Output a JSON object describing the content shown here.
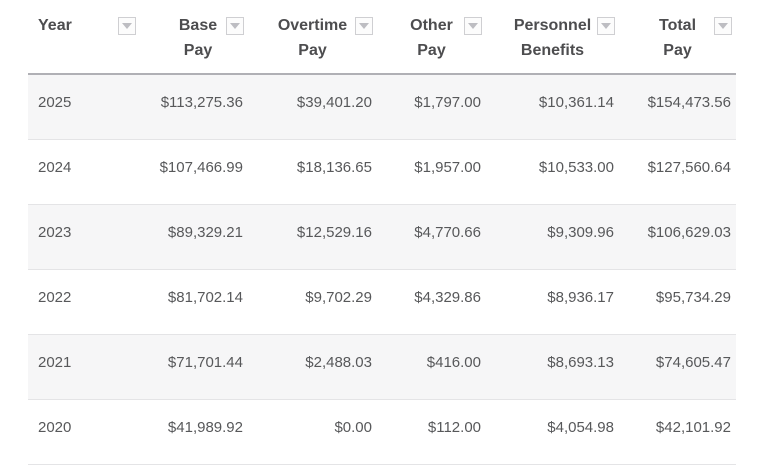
{
  "table": {
    "columns": [
      {
        "label": "Year",
        "filter_icon": "caret-down"
      },
      {
        "label": "Base Pay",
        "filter_icon": "caret-down"
      },
      {
        "label": "Overtime Pay",
        "filter_icon": "caret-down"
      },
      {
        "label": "Other Pay",
        "filter_icon": "caret-down"
      },
      {
        "label": "Personnel Benefits",
        "filter_icon": "caret-down"
      },
      {
        "label": "Total Pay",
        "filter_icon": "caret-down"
      }
    ],
    "rows": [
      {
        "year": "2025",
        "base_pay": "$113,275.36",
        "overtime_pay": "$39,401.20",
        "other_pay": "$1,797.00",
        "personnel_benefits": "$10,361.14",
        "total_pay": "$154,473.56"
      },
      {
        "year": "2024",
        "base_pay": "$107,466.99",
        "overtime_pay": "$18,136.65",
        "other_pay": "$1,957.00",
        "personnel_benefits": "$10,533.00",
        "total_pay": "$127,560.64"
      },
      {
        "year": "2023",
        "base_pay": "$89,329.21",
        "overtime_pay": "$12,529.16",
        "other_pay": "$4,770.66",
        "personnel_benefits": "$9,309.96",
        "total_pay": "$106,629.03"
      },
      {
        "year": "2022",
        "base_pay": "$81,702.14",
        "overtime_pay": "$9,702.29",
        "other_pay": "$4,329.86",
        "personnel_benefits": "$8,936.17",
        "total_pay": "$95,734.29"
      },
      {
        "year": "2021",
        "base_pay": "$71,701.44",
        "overtime_pay": "$2,488.03",
        "other_pay": "$416.00",
        "personnel_benefits": "$8,693.13",
        "total_pay": "$74,605.47"
      },
      {
        "year": "2020",
        "base_pay": "$41,989.92",
        "overtime_pay": "$0.00",
        "other_pay": "$112.00",
        "personnel_benefits": "$4,054.98",
        "total_pay": "$42,101.92"
      }
    ],
    "colors": {
      "header_text": "#4d4d4f",
      "cell_text": "#57585a",
      "row_stripe": "#f6f6f7",
      "row_border": "#e4e4e6",
      "header_border": "#b0b0b5",
      "filter_icon_border": "#cfcfd2",
      "filter_icon_arrow": "#bdbdc2"
    }
  }
}
